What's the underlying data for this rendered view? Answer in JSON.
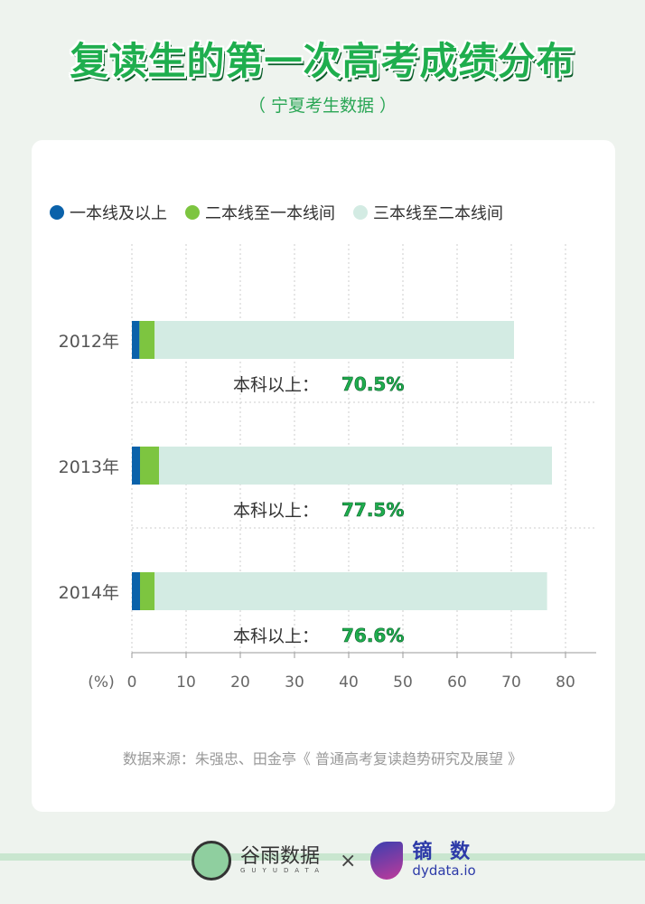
{
  "title": "复读生的第一次高考成绩分布",
  "subtitle": "（ 宁夏考生数据 ）",
  "source": "数据来源：朱强忠、田金亭《 普通高考复读趋势研究及展望 》",
  "footer": {
    "brand1": "谷雨数据",
    "brand1_sub": "GUYUDATA",
    "times": "×",
    "brand2": "镝 数",
    "brand2_sub": "dydata.io"
  },
  "chart_data": {
    "type": "bar",
    "orientation": "horizontal",
    "stacked": true,
    "categories": [
      "2012年",
      "2013年",
      "2014年"
    ],
    "series": [
      {
        "name": "一本线及以上",
        "color": "#0a62aa",
        "values": [
          1.4,
          1.5,
          1.5
        ]
      },
      {
        "name": "二本线至一本线间",
        "color": "#7dc540",
        "values": [
          2.8,
          3.5,
          2.7
        ]
      },
      {
        "name": "三本线至二本线间",
        "color": "#d3ebe3",
        "values": [
          66.3,
          72.5,
          72.4
        ]
      }
    ],
    "annotation_prefix": "本科以上：",
    "annotations": [
      "70.5%",
      "77.5%",
      "76.6%"
    ],
    "xlabel": "(%)",
    "xlim": [
      0,
      80
    ],
    "xticks": [
      0,
      10,
      20,
      30,
      40,
      50,
      60,
      70,
      80
    ],
    "grid": true,
    "legend": "top"
  }
}
